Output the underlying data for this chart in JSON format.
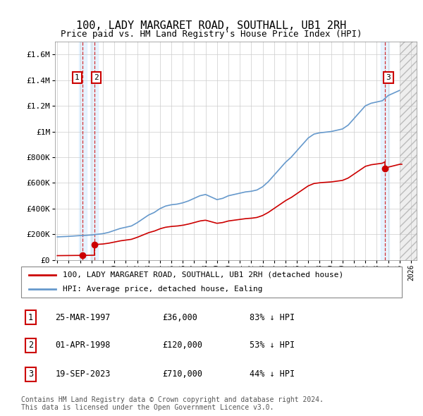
{
  "title": "100, LADY MARGARET ROAD, SOUTHALL, UB1 2RH",
  "subtitle": "Price paid vs. HM Land Registry's House Price Index (HPI)",
  "footer": "Contains HM Land Registry data © Crown copyright and database right 2024.\nThis data is licensed under the Open Government Licence v3.0.",
  "legend_line1": "100, LADY MARGARET ROAD, SOUTHALL, UB1 2RH (detached house)",
  "legend_line2": "HPI: Average price, detached house, Ealing",
  "sales": [
    {
      "num": 1,
      "date": "25-MAR-1997",
      "price": 36000,
      "pct": "83%",
      "year": 1997.23
    },
    {
      "num": 2,
      "date": "01-APR-1998",
      "price": 120000,
      "pct": "53%",
      "year": 1998.25
    },
    {
      "num": 3,
      "date": "19-SEP-2023",
      "price": 710000,
      "pct": "44%",
      "year": 2023.72
    }
  ],
  "red_line_color": "#cc0000",
  "blue_line_color": "#6699cc",
  "sale_marker_color": "#cc0000",
  "dashed_line_color": "#cc0000",
  "shade_color": "#ddeeff",
  "ylim": [
    0,
    1700000
  ],
  "xlim": [
    1994.8,
    2026.5
  ],
  "background_color": "#ffffff",
  "grid_color": "#cccccc",
  "hpi_years": [
    1995.0,
    1995.5,
    1996.0,
    1996.5,
    1997.0,
    1997.5,
    1998.0,
    1998.5,
    1999.0,
    1999.5,
    2000.0,
    2000.5,
    2001.0,
    2001.5,
    2002.0,
    2002.5,
    2003.0,
    2003.5,
    2004.0,
    2004.5,
    2005.0,
    2005.5,
    2006.0,
    2006.5,
    2007.0,
    2007.5,
    2008.0,
    2008.5,
    2009.0,
    2009.5,
    2010.0,
    2010.5,
    2011.0,
    2011.5,
    2012.0,
    2012.5,
    2013.0,
    2013.5,
    2014.0,
    2014.5,
    2015.0,
    2015.5,
    2016.0,
    2016.5,
    2017.0,
    2017.5,
    2018.0,
    2018.5,
    2019.0,
    2019.5,
    2020.0,
    2020.5,
    2021.0,
    2021.5,
    2022.0,
    2022.5,
    2023.0,
    2023.5,
    2024.0,
    2024.5,
    2025.0
  ],
  "hpi_values": [
    180000,
    182000,
    184000,
    187000,
    190000,
    192000,
    195000,
    200000,
    205000,
    215000,
    230000,
    245000,
    255000,
    265000,
    290000,
    320000,
    350000,
    370000,
    400000,
    420000,
    430000,
    435000,
    445000,
    460000,
    480000,
    500000,
    510000,
    490000,
    470000,
    480000,
    500000,
    510000,
    520000,
    530000,
    535000,
    545000,
    570000,
    610000,
    660000,
    710000,
    760000,
    800000,
    850000,
    900000,
    950000,
    980000,
    990000,
    995000,
    1000000,
    1010000,
    1020000,
    1050000,
    1100000,
    1150000,
    1200000,
    1220000,
    1230000,
    1240000,
    1280000,
    1300000,
    1320000
  ]
}
